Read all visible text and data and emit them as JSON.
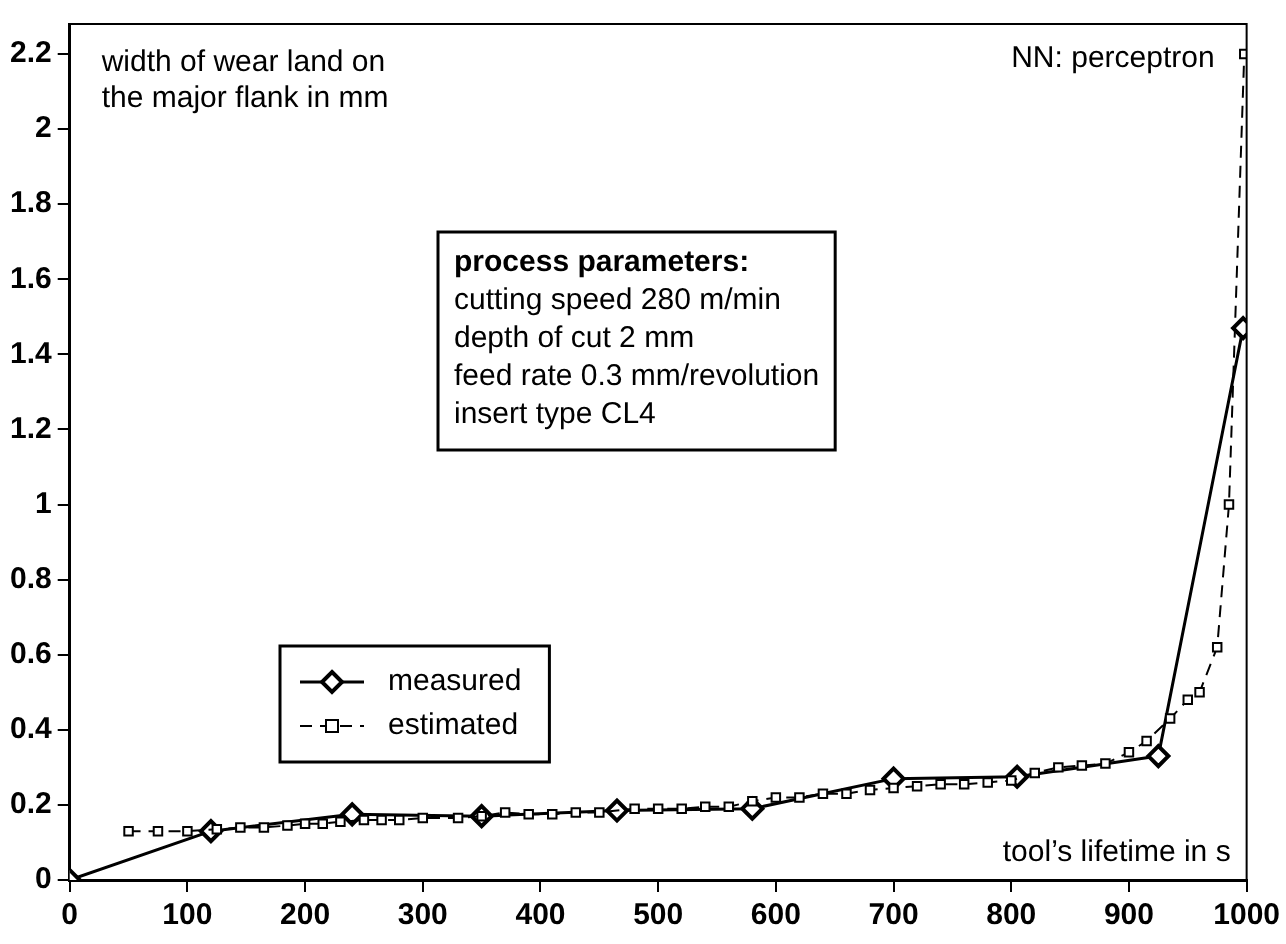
{
  "chart_data": {
    "type": "line",
    "xlabel": "tool’s lifetime in s",
    "ylabel": "width of wear land on the major flank in mm",
    "annotations": [
      "NN: perceptron",
      "process parameters:\ncutting speed 280 m/min\ndepth of cut 2 mm\nfeed rate 0.3 mm/revolution\ninsert type CL4"
    ],
    "xlim": [
      0,
      1000
    ],
    "xticks": [
      0,
      100,
      200,
      300,
      400,
      500,
      600,
      700,
      800,
      900,
      1000
    ],
    "ylim": [
      0,
      2.28
    ],
    "yticks": [
      0,
      0.2,
      0.4,
      0.6,
      0.8,
      1,
      1.2,
      1.4,
      1.6,
      1.8,
      2,
      2.2
    ],
    "grid": false,
    "legend": "left",
    "series": [
      {
        "name": "measured",
        "color": "#000000",
        "marker": "diamond",
        "line_style": "solid",
        "x": [
          0,
          120,
          240,
          350,
          465,
          580,
          700,
          805,
          925,
          997
        ],
        "values": [
          0,
          0.13,
          0.175,
          0.17,
          0.185,
          0.19,
          0.27,
          0.275,
          0.33,
          1.47
        ]
      },
      {
        "name": "estimated",
        "color": "#000000",
        "marker": "square",
        "line_style": "dashed",
        "x": [
          50,
          75,
          100,
          125,
          145,
          165,
          185,
          200,
          215,
          230,
          250,
          265,
          280,
          300,
          330,
          350,
          370,
          390,
          410,
          430,
          450,
          480,
          500,
          520,
          540,
          560,
          580,
          600,
          620,
          640,
          660,
          680,
          700,
          720,
          740,
          760,
          780,
          800,
          820,
          840,
          860,
          880,
          900,
          915,
          935,
          950,
          960,
          975,
          985,
          998
        ],
        "values": [
          0.13,
          0.13,
          0.13,
          0.135,
          0.14,
          0.14,
          0.145,
          0.15,
          0.15,
          0.155,
          0.16,
          0.16,
          0.16,
          0.165,
          0.165,
          0.17,
          0.18,
          0.175,
          0.175,
          0.18,
          0.18,
          0.19,
          0.19,
          0.19,
          0.195,
          0.195,
          0.21,
          0.22,
          0.22,
          0.23,
          0.23,
          0.24,
          0.245,
          0.25,
          0.255,
          0.255,
          0.26,
          0.265,
          0.285,
          0.3,
          0.305,
          0.31,
          0.34,
          0.37,
          0.43,
          0.48,
          0.5,
          0.62,
          1.0,
          2.2
        ]
      }
    ]
  }
}
